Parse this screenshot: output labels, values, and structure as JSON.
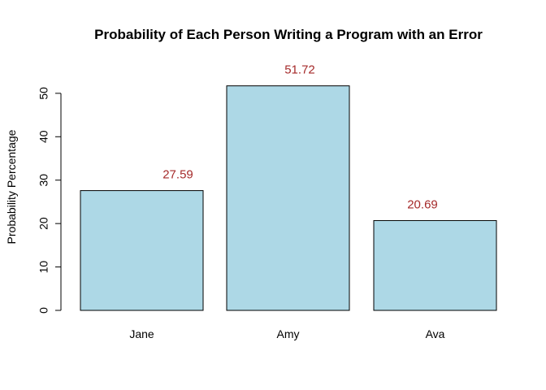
{
  "chart_data": {
    "type": "bar",
    "title": "Probability of Each Person Writing a Program with an Error",
    "xlabel": "",
    "ylabel": "Probability Percentage",
    "categories": [
      "Jane",
      "Amy",
      "Ava"
    ],
    "values": [
      27.59,
      51.72,
      20.69
    ],
    "value_labels": [
      "27.59",
      "51.72",
      "20.69"
    ],
    "yticks": [
      0,
      10,
      20,
      30,
      40,
      50
    ],
    "ytick_labels": [
      "0",
      "10",
      "20",
      "30",
      "40",
      "50"
    ],
    "ylim": [
      0,
      52
    ],
    "grid": false,
    "legend": "none",
    "colors": {
      "bar_fill": "#add8e6",
      "bar_stroke": "#000000",
      "data_label": "#a52a2a"
    }
  }
}
